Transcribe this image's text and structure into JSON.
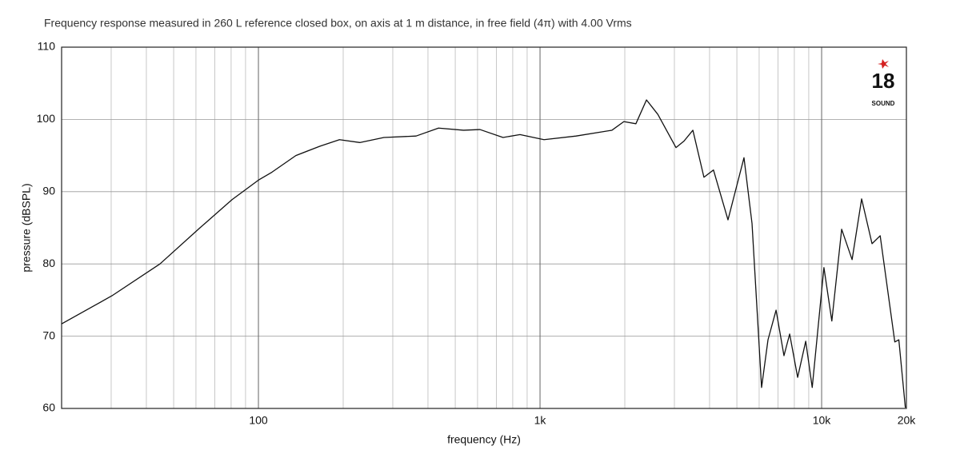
{
  "chart_data": {
    "type": "line",
    "title": "Frequency response measured in 260 L reference closed box, on axis at 1 m distance, in free field (4π) with 4.00 Vrms",
    "x_label": "frequency (Hz)",
    "y_label": "pressure (dBSPL)",
    "logo": {
      "number": "18",
      "word": "SOUND"
    },
    "x_log": true,
    "grid": true,
    "color": "#111111",
    "xlim": [
      20,
      20000
    ],
    "ylim": [
      60,
      110
    ],
    "xticks": [
      100,
      {
        "value": 1000,
        "label": "1k"
      },
      {
        "value": 10000,
        "label": "10k"
      },
      {
        "value": 20000,
        "label": "20k"
      }
    ],
    "yticks": [
      60,
      70,
      80,
      90,
      100,
      110
    ],
    "x": [
      20,
      30.2,
      44.7,
      62,
      80.6,
      100,
      111.7,
      135.8,
      165.5,
      194,
      229,
      279,
      363,
      436,
      535,
      612,
      739,
      849,
      1033,
      1343,
      1800,
      1985,
      2190,
      2388,
      2620,
      3040,
      3245,
      3490,
      3820,
      4130,
      4650,
      5300,
      5660,
      6120,
      6450,
      6890,
      7350,
      7700,
      8220,
      8780,
      9260,
      10190,
      10870,
      11780,
      12830,
      13870,
      15100,
      16140,
      18190,
      18800,
      19830
    ],
    "values": [
      71.7,
      75.6,
      80,
      85,
      88.9,
      91.6,
      92.7,
      95,
      96.3,
      97.2,
      96.8,
      97.5,
      97.7,
      98.8,
      98.5,
      98.6,
      97.5,
      97.9,
      97.2,
      97.7,
      98.5,
      99.7,
      99.4,
      102.7,
      100.7,
      96.1,
      97,
      98.5,
      92,
      93,
      86.1,
      94.7,
      85.6,
      62.9,
      69.5,
      73.6,
      67.3,
      70.3,
      64.3,
      69.3,
      62.9,
      79.5,
      72.1,
      84.8,
      80.6,
      89,
      82.8,
      83.9,
      69.2,
      69.5,
      60.1
    ]
  }
}
